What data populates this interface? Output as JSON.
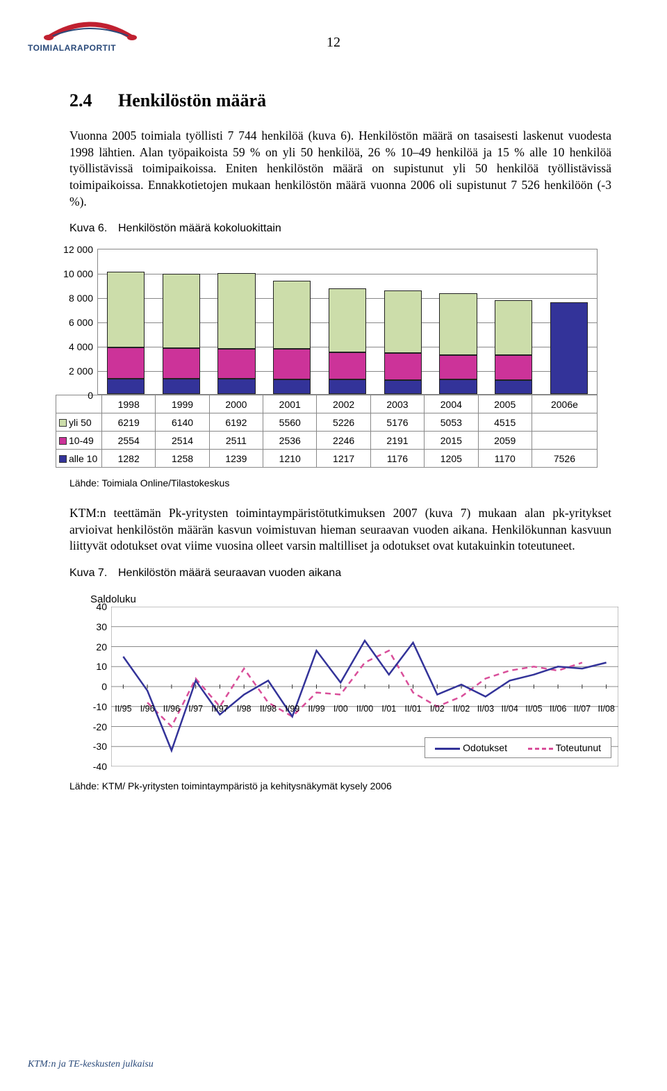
{
  "logo_text": "TOIMIALARAPORTIT",
  "page_number": "12",
  "heading_number": "2.4",
  "heading_title": "Henkilöstön määrä",
  "para1": "Vuonna 2005 toimiala työllisti 7 744 henkilöä (kuva 6). Henkilöstön määrä on tasaisesti laskenut vuodesta 1998 lähtien. Alan työpaikoista 59 % on yli 50 henkilöä, 26 % 10–49 henkilöä ja 15 % alle 10 henkilöä työllistävissä toimipaikoissa. Eniten henkilöstön määrä on supistunut yli 50 henkilöä työllistävissä toimipaikoissa. Ennakkotietojen mukaan henkilöstön määrä vuonna 2006 oli supistunut 7 526 henkilöön (-3 %).",
  "fig6_caption_num": "Kuva 6.",
  "fig6_caption": "Henkilöstön määrä kokoluokittain",
  "fig6_source": "Lähde: Toimiala Online/Tilastokeskus",
  "para2": "KTM:n teettämän Pk-yritysten toimintaympäristötutkimuksen 2007 (kuva 7) mukaan alan pk-yritykset arvioivat henkilöstön määrän kasvun voimistuvan hieman seuraavan vuoden aikana. Henkilökunnan kasvuun liittyvät odotukset ovat viime vuosina olleet varsin maltilliset ja odotukset ovat kutakuinkin toteutuneet.",
  "fig7_caption_num": "Kuva 7.",
  "fig7_caption": "Henkilöstön määrä seuraavan vuoden aikana",
  "fig7_source": "Lähde: KTM/ Pk-yritysten toimintaympäristö ja kehitysnäkymät kysely 2006",
  "footer": "KTM:n ja TE-keskusten julkaisu",
  "chart1": {
    "type": "stacked-bar",
    "ymax": 12000,
    "ytick_step": 2000,
    "yticks": [
      "12 000",
      "10 000",
      "8 000",
      "6 000",
      "4 000",
      "2 000",
      "0"
    ],
    "years": [
      "1998",
      "1999",
      "2000",
      "2001",
      "2002",
      "2003",
      "2004",
      "2005",
      "2006e"
    ],
    "series": [
      {
        "key": "yli 50",
        "color": "#ccddaa",
        "values": [
          6219,
          6140,
          6192,
          5560,
          5226,
          5176,
          5053,
          4515,
          null
        ]
      },
      {
        "key": "10-49",
        "color": "#cc3399",
        "values": [
          2554,
          2514,
          2511,
          2536,
          2246,
          2191,
          2015,
          2059,
          null
        ]
      },
      {
        "key": "alle 10",
        "color": "#333399",
        "values": [
          1282,
          1258,
          1239,
          1210,
          1217,
          1176,
          1205,
          1170,
          7526
        ]
      }
    ],
    "background_color": "#ffffff",
    "grid_color": "#888888"
  },
  "chart2": {
    "type": "line",
    "ytitle": "Saldoluku",
    "ymin": -40,
    "ymax": 40,
    "ytick_step": 10,
    "yticks": [
      "40",
      "30",
      "20",
      "10",
      "0",
      "-10",
      "-20",
      "-30",
      "-40"
    ],
    "xlabels": [
      "II/95",
      "I/96",
      "II/96",
      "I/97",
      "II/97",
      "I/98",
      "II/98",
      "I/99",
      "II/99",
      "I/00",
      "II/00",
      "I/01",
      "II/01",
      "I/02",
      "II/02",
      "II/03",
      "II/04",
      "II/05",
      "II/06",
      "II/07",
      "II/08"
    ],
    "series1": {
      "name": "Odotukset",
      "color": "#333399",
      "width": 2.5,
      "dash": "none",
      "values": [
        15,
        -2,
        -32,
        3,
        -14,
        -4,
        3,
        -15,
        18,
        2,
        23,
        6,
        22,
        -4,
        1,
        -5,
        3,
        6,
        10,
        9,
        12
      ]
    },
    "series2": {
      "name": "Toteutunut",
      "color": "#d94f9a",
      "width": 2.5,
      "dash": "8,6",
      "values": [
        null,
        -8,
        -20,
        4,
        -10,
        9,
        -8,
        -15,
        -3,
        -4,
        12,
        18,
        -3,
        -10,
        -5,
        4,
        8,
        10,
        8,
        12,
        null
      ]
    },
    "grid_color": "#888888"
  }
}
